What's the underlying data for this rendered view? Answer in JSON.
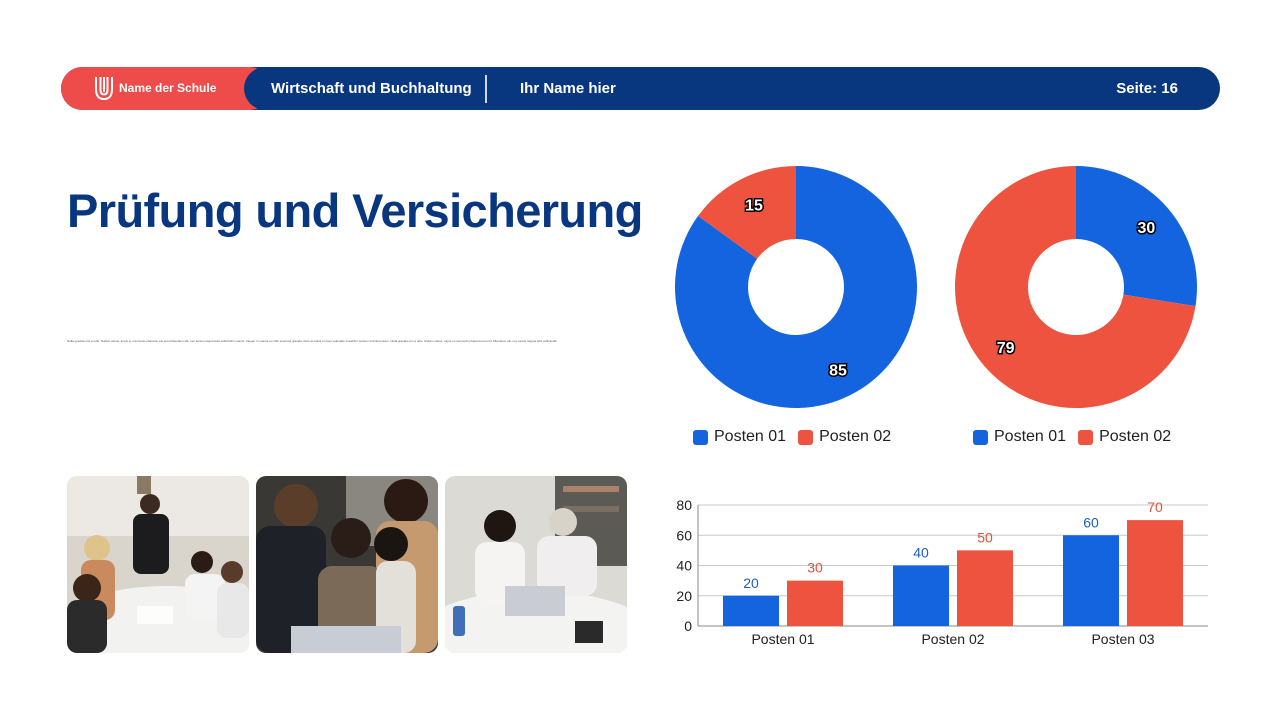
{
  "header": {
    "school_name": "Name der Schule",
    "subject": "Wirtschaft und Buchhaltung",
    "author": "Ihr Name hier",
    "page": "Seite: 16"
  },
  "slide": {
    "title": "Prüfung und Versicherung",
    "body": "Nulla gravida orci a odio. Nullam varius, turpis et commodo pharetra, est eros bibendum elit, nec luctus magna felis sollicitudin mauris. Integer in mauris eu nibh euismod gravida. Duis ac tellus et risus vulputate      Curabitur pretium tincidunt lacus. Nulla gravida orci a odio. Nullam varius, turpis et commodo pharetra est eros bibendum elit, nec luctus magna felis sollicitudin"
  },
  "colors": {
    "blue": "#1464e0",
    "red": "#ee5340",
    "navy": "#08367f",
    "label_blue": "#1c5fbf",
    "label_red": "#e2523f"
  },
  "chart_data": [
    {
      "type": "pie",
      "variant": "donut",
      "series": [
        {
          "name": "Posten 01",
          "value": 85
        },
        {
          "name": "Posten 02",
          "value": 15
        }
      ],
      "legend": "bottom"
    },
    {
      "type": "pie",
      "variant": "donut",
      "series": [
        {
          "name": "Posten 01",
          "value": 30
        },
        {
          "name": "Posten 02",
          "value": 79
        }
      ],
      "legend": "bottom"
    },
    {
      "type": "bar",
      "categories": [
        "Posten 01",
        "Posten 02",
        "Posten 03"
      ],
      "series": [
        {
          "values": [
            20,
            40,
            60
          ]
        },
        {
          "values": [
            30,
            50,
            70
          ]
        }
      ],
      "ylim": [
        0,
        80
      ],
      "yticks": [
        0,
        20,
        40,
        60,
        80
      ],
      "grid": true
    }
  ]
}
